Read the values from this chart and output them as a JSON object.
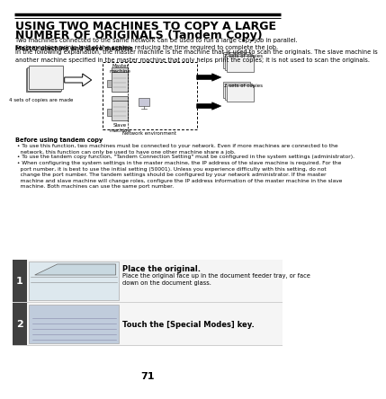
{
  "bg_color": "#ffffff",
  "title_line1": "USING TWO MACHINES TO COPY A LARGE",
  "title_line2": "NUMBER OF ORIGINALS (Tandem Copy)",
  "title_fontsize": 9.0,
  "subtitle_text": "Two machines connected to the same network can be used to run a large copy job in parallel.\nEach machine prints half of the copies, reducing the time required to complete the job.",
  "subtitle_fontsize": 4.8,
  "bold_subheading": "Master machine and slave machine",
  "body_text": "In the following explanation, the master machine is the machine that is used to scan the originals. The slave machine is\nanother machine specified in the master machine that only helps print the copies; it is not used to scan the originals.",
  "body_fontsize": 4.8,
  "before_heading": "Before using tandem copy",
  "before_text1": " • To use this function, two machines must be connected to your network. Even if more machines are connected to the\n   network, this function can only be used to have one other machine share a job.",
  "before_text2": " • To use the tandem copy function, \"Tandem Connection Setting\" must be configured in the system settings (administrator).",
  "before_text3": " • When configuring the system settings in the master machine, the IP address of the slave machine is required. For the\n   port number, it is best to use the initial setting (50001). Unless you experience difficulty with this setting, do not\n   change the port number. The tandem settings should be configured by your network administrator. If the master\n   machine and slave machine will change roles, configure the IP address information of the master machine in the slave\n   machine. Both machines can use the same port number.",
  "step1_title": "Place the original.",
  "step1_body": "Place the original face up in the document feeder tray, or face\ndown on the document glass.",
  "step2_title": "Touch the [Special Modes] key.",
  "step_title_fontsize": 6.0,
  "step_body_fontsize": 4.8,
  "page_number": "71",
  "step_bg_color": "#404040",
  "step_label_color": "#ffffff",
  "diagram_label_master": "Master\nmachine",
  "diagram_label_slave": "Slave\nmachine",
  "diagram_label_network": "Network environment",
  "diagram_copies_top": "2 sets of copies",
  "diagram_copies_bottom": "2 sets of copies",
  "diagram_sets_label": "4 sets of copies are made"
}
